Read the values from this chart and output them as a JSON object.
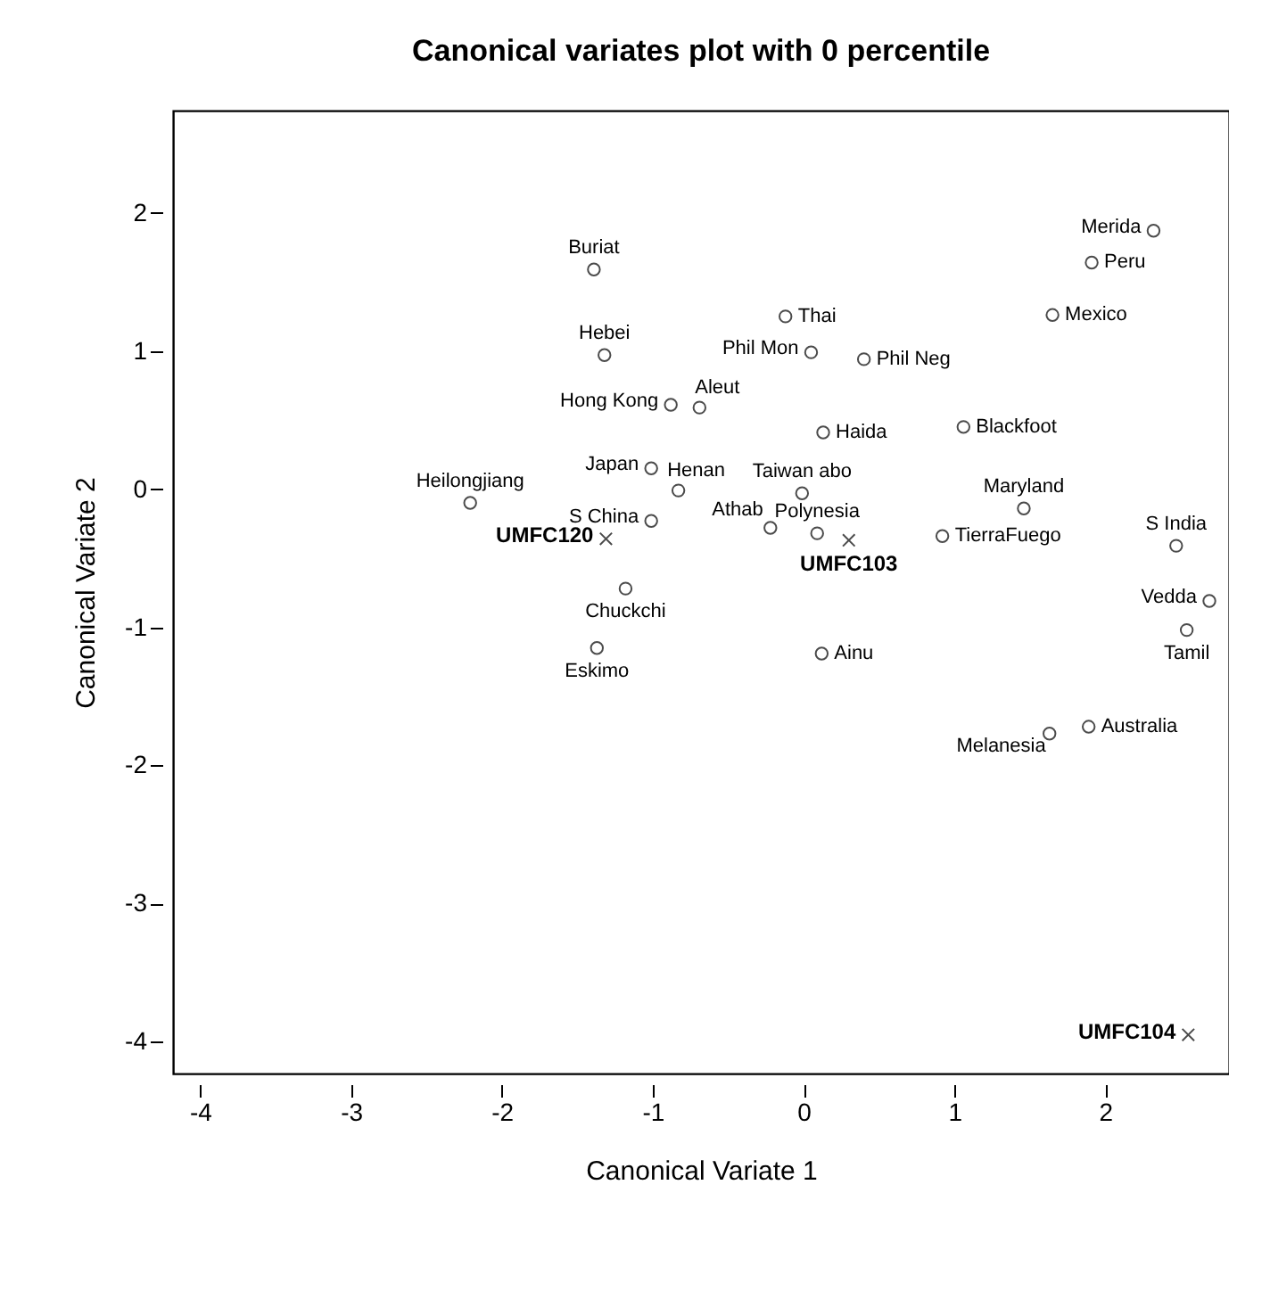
{
  "chart_data": {
    "type": "scatter",
    "title": "Canonical variates plot with 0 percentile",
    "xlabel": "Canonical Variate 1",
    "ylabel": "Canonical Variate 2",
    "xlim": [
      -4.18,
      2.82
    ],
    "ylim": [
      -4.23,
      2.74
    ],
    "xticks": [
      -4,
      -3,
      -2,
      -1,
      0,
      1,
      2
    ],
    "yticks": [
      -4,
      -3,
      -2,
      -1,
      0,
      1,
      2
    ],
    "grid": false,
    "series": [
      {
        "color": "#000000",
        "marker": "circle",
        "x": [
          -1.39,
          -1.32,
          -0.88,
          -0.69,
          -1.01,
          -0.83,
          -2.21,
          -1.01,
          -1.18,
          -1.37,
          -0.12,
          0.05,
          0.4,
          0.13,
          -0.01,
          -0.22,
          0.09,
          0.92,
          1.06,
          1.46,
          2.32,
          1.91,
          1.65,
          2.47,
          2.69,
          2.54,
          0.12,
          1.63,
          1.89
        ],
        "values": [
          1.59,
          0.97,
          0.61,
          0.59,
          0.15,
          -0.01,
          -0.1,
          -0.23,
          -0.72,
          -1.15,
          1.25,
          0.99,
          0.94,
          0.41,
          -0.03,
          -0.28,
          -0.32,
          -0.34,
          0.45,
          -0.14,
          1.87,
          1.64,
          1.26,
          -0.41,
          -0.81,
          -1.02,
          -1.19,
          -1.77,
          -1.72
        ]
      },
      {
        "color": "#000000",
        "marker": "cross",
        "x": [
          -1.31,
          0.3,
          2.55
        ],
        "values": [
          -0.36,
          -0.37,
          -3.95
        ]
      }
    ],
    "annotations": [
      {
        "text": "Buriat",
        "x": -1.39,
        "y": 1.59
      },
      {
        "text": "Hebei",
        "x": -1.32,
        "y": 0.97
      },
      {
        "text": "Hong Kong",
        "x": -0.88,
        "y": 0.61
      },
      {
        "text": "Aleut",
        "x": -0.69,
        "y": 0.59
      },
      {
        "text": "Japan",
        "x": -1.01,
        "y": 0.15
      },
      {
        "text": "Henan",
        "x": -0.83,
        "y": -0.01
      },
      {
        "text": "Heilongjiang",
        "x": -2.21,
        "y": -0.1
      },
      {
        "text": "S China",
        "x": -1.01,
        "y": -0.23
      },
      {
        "text": "UMFC120",
        "x": -1.31,
        "y": -0.36
      },
      {
        "text": "Chuckchi",
        "x": -1.18,
        "y": -0.72
      },
      {
        "text": "Eskimo",
        "x": -1.37,
        "y": -1.15
      },
      {
        "text": "Thai",
        "x": -0.12,
        "y": 1.25
      },
      {
        "text": "Phil Mon",
        "x": 0.05,
        "y": 0.99
      },
      {
        "text": "Phil Neg",
        "x": 0.4,
        "y": 0.94
      },
      {
        "text": "Haida",
        "x": 0.13,
        "y": 0.41
      },
      {
        "text": "Taiwan abo",
        "x": -0.01,
        "y": -0.03
      },
      {
        "text": "Athab",
        "x": -0.22,
        "y": -0.28
      },
      {
        "text": "Polynesia",
        "x": 0.09,
        "y": -0.32
      },
      {
        "text": "UMFC103",
        "x": 0.3,
        "y": -0.37
      },
      {
        "text": "TierraFuego",
        "x": 0.92,
        "y": -0.34
      },
      {
        "text": "Blackfoot",
        "x": 1.06,
        "y": 0.45
      },
      {
        "text": "Maryland",
        "x": 1.46,
        "y": -0.14
      },
      {
        "text": "Merida",
        "x": 2.32,
        "y": 1.87
      },
      {
        "text": "Peru",
        "x": 1.91,
        "y": 1.64
      },
      {
        "text": "Mexico",
        "x": 1.65,
        "y": 1.26
      },
      {
        "text": "S India",
        "x": 2.47,
        "y": -0.41
      },
      {
        "text": "Vedda",
        "x": 2.69,
        "y": -0.81
      },
      {
        "text": "Tamil",
        "x": 2.54,
        "y": -1.02
      },
      {
        "text": "Ainu",
        "x": 0.12,
        "y": -1.19
      },
      {
        "text": "Melanesia",
        "x": 1.63,
        "y": -1.77
      },
      {
        "text": "Australia",
        "x": 1.89,
        "y": -1.72
      },
      {
        "text": "UMFC104",
        "x": 2.55,
        "y": -3.95
      }
    ]
  }
}
